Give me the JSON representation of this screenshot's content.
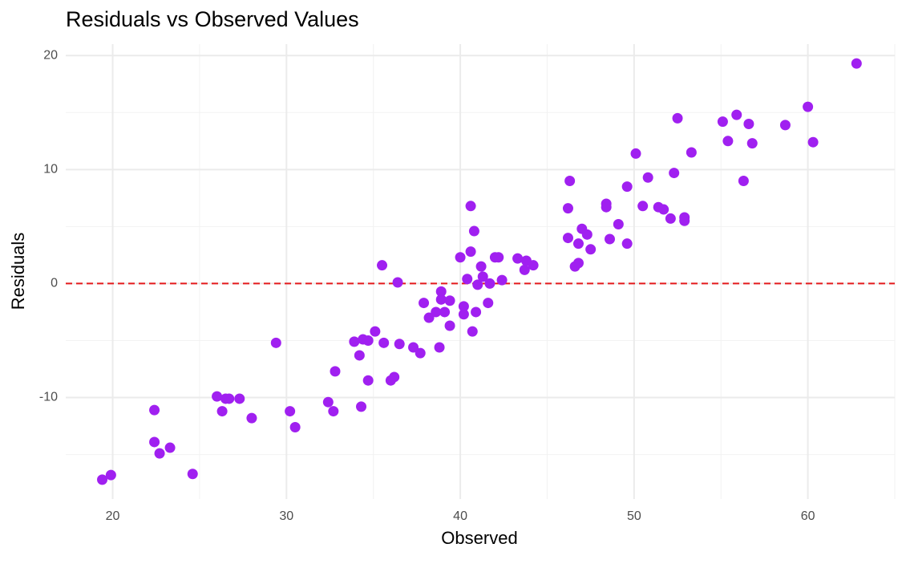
{
  "chart_data": {
    "type": "scatter",
    "title": "Residuals vs Observed Values",
    "x_label": "Observed",
    "y_label": "Residuals",
    "color": "#a020f0",
    "xlim": [
      17.3,
      65.0
    ],
    "ylim": [
      -18.9,
      21.0
    ],
    "xticks": [
      20,
      30,
      40,
      50,
      60
    ],
    "yticks": [
      -10,
      0,
      10,
      20
    ],
    "minor_xticks": [
      25,
      35,
      45,
      55,
      65
    ],
    "minor_yticks": [
      -15,
      -5,
      5,
      15
    ],
    "grid": true,
    "reference_line": {
      "y": 0,
      "color": "#e41a1c",
      "dashed": true
    },
    "x": [
      19.4,
      19.9,
      22.4,
      22.4,
      22.7,
      23.3,
      24.6,
      26.0,
      26.3,
      26.5,
      26.7,
      27.3,
      28.0,
      29.4,
      30.2,
      30.5,
      32.4,
      32.7,
      32.8,
      33.9,
      34.2,
      34.3,
      34.4,
      34.7,
      34.7,
      35.1,
      35.5,
      35.6,
      36.0,
      36.2,
      36.4,
      36.5,
      37.3,
      37.7,
      37.9,
      38.2,
      38.6,
      38.8,
      38.9,
      38.9,
      39.1,
      39.4,
      39.4,
      40.0,
      40.2,
      40.2,
      40.4,
      40.6,
      40.6,
      40.7,
      40.8,
      40.9,
      41.0,
      41.2,
      41.3,
      41.6,
      41.7,
      42.0,
      42.2,
      42.4,
      43.3,
      43.7,
      43.8,
      44.2,
      46.2,
      46.2,
      46.3,
      46.6,
      46.8,
      46.8,
      47.0,
      47.3,
      47.5,
      48.4,
      48.4,
      48.6,
      49.1,
      49.6,
      49.6,
      50.1,
      50.5,
      50.8,
      51.4,
      51.7,
      52.1,
      52.3,
      52.5,
      52.9,
      52.9,
      53.3,
      55.1,
      55.4,
      55.9,
      56.3,
      56.6,
      56.8,
      58.7,
      60.0,
      60.3,
      62.8
    ],
    "values": [
      -17.2,
      -16.8,
      -11.1,
      -13.9,
      -14.9,
      -14.4,
      -16.7,
      -9.9,
      -11.2,
      -10.1,
      -10.1,
      -10.1,
      -11.8,
      -5.2,
      -11.2,
      -12.6,
      -10.4,
      -11.2,
      -7.7,
      -5.1,
      -6.3,
      -10.8,
      -4.9,
      -5.0,
      -8.5,
      -4.2,
      1.6,
      -5.2,
      -8.5,
      -8.2,
      0.1,
      -5.3,
      -5.6,
      -6.1,
      -1.7,
      -3.0,
      -2.5,
      -5.6,
      -0.7,
      -1.4,
      -2.5,
      -1.5,
      -3.7,
      2.3,
      -2.0,
      -2.7,
      0.4,
      2.8,
      6.8,
      -4.2,
      4.6,
      -2.5,
      -0.1,
      1.5,
      0.6,
      -1.7,
      0.0,
      2.3,
      2.3,
      0.3,
      2.2,
      1.2,
      2.0,
      1.6,
      4.0,
      6.6,
      9.0,
      1.5,
      1.8,
      3.5,
      4.8,
      4.3,
      3.0,
      7.0,
      6.7,
      3.9,
      5.2,
      8.5,
      3.5,
      11.4,
      6.8,
      9.3,
      6.7,
      6.5,
      5.7,
      9.7,
      14.5,
      5.8,
      5.5,
      11.5,
      14.2,
      12.5,
      14.8,
      9.0,
      14.0,
      12.3,
      13.9,
      15.5,
      12.4,
      19.3
    ]
  }
}
